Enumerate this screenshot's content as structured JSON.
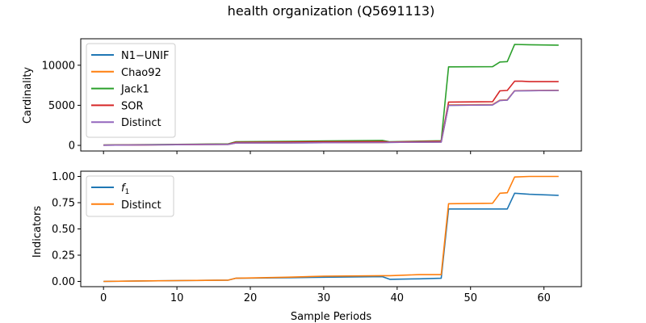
{
  "figure": {
    "title": "health organization (Q5691113)"
  },
  "chart_data": [
    {
      "type": "line",
      "ylabel": "Cardinality",
      "xlabel": "",
      "xlim": [
        -3.1,
        65.1
      ],
      "ylim": [
        -700,
        13300
      ],
      "x_ticks": [
        0,
        10,
        20,
        30,
        40,
        50,
        60
      ],
      "y_ticks": [
        0,
        5000,
        10000
      ],
      "show_x_tick_labels": false,
      "legend_position": "upper left",
      "series": [
        {
          "name": "N1−UNIF",
          "color": "#1f77b4",
          "x": [
            0,
            5,
            10,
            17,
            18,
            25,
            30,
            38,
            39,
            46,
            47,
            53,
            54,
            55,
            56,
            58,
            62
          ],
          "y": [
            30,
            60,
            90,
            130,
            300,
            320,
            340,
            360,
            380,
            420,
            5000,
            5050,
            5600,
            5650,
            6800,
            6820,
            6850
          ]
        },
        {
          "name": "Chao92",
          "color": "#ff7f0e",
          "x": [
            0,
            5,
            10,
            17,
            18,
            25,
            30,
            38,
            39,
            46,
            47,
            53,
            54,
            55,
            56,
            58,
            62
          ],
          "y": [
            30,
            60,
            90,
            130,
            310,
            330,
            350,
            370,
            390,
            430,
            5050,
            5100,
            5650,
            5700,
            6820,
            6840,
            6870
          ]
        },
        {
          "name": "Jack1",
          "color": "#2ca02c",
          "x": [
            0,
            5,
            10,
            17,
            18,
            25,
            30,
            38,
            39,
            46,
            47,
            53,
            54,
            55,
            56,
            58,
            62
          ],
          "y": [
            50,
            90,
            130,
            190,
            450,
            500,
            560,
            620,
            450,
            580,
            9800,
            9820,
            10400,
            10450,
            12600,
            12550,
            12500
          ]
        },
        {
          "name": "SOR",
          "color": "#d62728",
          "x": [
            0,
            5,
            10,
            17,
            18,
            25,
            30,
            38,
            39,
            46,
            47,
            53,
            54,
            55,
            56,
            57,
            58,
            62
          ],
          "y": [
            40,
            70,
            110,
            160,
            380,
            420,
            450,
            480,
            420,
            520,
            5400,
            5450,
            6800,
            6850,
            8000,
            8000,
            7950,
            7950
          ]
        },
        {
          "name": "Distinct",
          "color": "#9467bd",
          "x": [
            0,
            5,
            10,
            17,
            18,
            25,
            30,
            38,
            39,
            46,
            47,
            53,
            54,
            55,
            56,
            58,
            62
          ],
          "y": [
            30,
            60,
            90,
            130,
            300,
            320,
            340,
            360,
            380,
            420,
            5000,
            5050,
            5600,
            5650,
            6800,
            6820,
            6850
          ]
        }
      ]
    },
    {
      "type": "line",
      "ylabel": "Indicators",
      "xlabel": "Sample Periods",
      "xlim": [
        -3.1,
        65.1
      ],
      "ylim": [
        -0.05,
        1.05
      ],
      "x_ticks": [
        0,
        10,
        20,
        30,
        40,
        50,
        60
      ],
      "y_ticks": [
        0.0,
        0.25,
        0.5,
        0.75,
        1.0
      ],
      "y_tick_labels": [
        "0.00",
        "0.25",
        "0.50",
        "0.75",
        "1.00"
      ],
      "show_x_tick_labels": true,
      "legend_position": "upper left",
      "series": [
        {
          "name": "f1",
          "color": "#1f77b4",
          "x": [
            0,
            5,
            10,
            17,
            18,
            25,
            30,
            38,
            39,
            43,
            46,
            47,
            53,
            54,
            55,
            56,
            58,
            62
          ],
          "y": [
            0.0,
            0.005,
            0.008,
            0.012,
            0.03,
            0.035,
            0.04,
            0.045,
            0.02,
            0.025,
            0.03,
            0.69,
            0.69,
            0.69,
            0.69,
            0.84,
            0.83,
            0.82
          ]
        },
        {
          "name": "Distinct",
          "color": "#ff7f0e",
          "x": [
            0,
            5,
            10,
            17,
            18,
            25,
            30,
            38,
            39,
            43,
            46,
            47,
            53,
            54,
            55,
            56,
            58,
            62
          ],
          "y": [
            0.0,
            0.005,
            0.008,
            0.012,
            0.03,
            0.04,
            0.05,
            0.055,
            0.055,
            0.065,
            0.065,
            0.74,
            0.745,
            0.84,
            0.845,
            0.995,
            1.0,
            1.0
          ]
        }
      ]
    }
  ]
}
